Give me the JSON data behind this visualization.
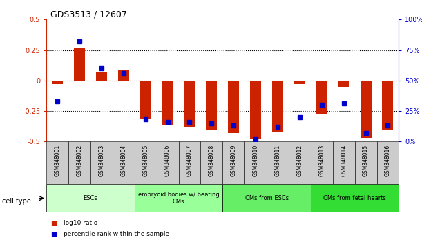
{
  "title": "GDS3513 / 12607",
  "samples": [
    "GSM348001",
    "GSM348002",
    "GSM348003",
    "GSM348004",
    "GSM348005",
    "GSM348006",
    "GSM348007",
    "GSM348008",
    "GSM348009",
    "GSM348010",
    "GSM348011",
    "GSM348012",
    "GSM348013",
    "GSM348014",
    "GSM348015",
    "GSM348016"
  ],
  "log10_ratio": [
    -0.03,
    0.27,
    0.07,
    0.09,
    -0.32,
    -0.37,
    -0.38,
    -0.4,
    -0.43,
    -0.48,
    -0.42,
    -0.03,
    -0.28,
    -0.05,
    -0.47,
    -0.4
  ],
  "percentile_rank": [
    33,
    82,
    60,
    56,
    18,
    16,
    16,
    15,
    13,
    2,
    12,
    20,
    30,
    31,
    7,
    13
  ],
  "ylim_left": [
    -0.5,
    0.5
  ],
  "ylim_right": [
    0,
    100
  ],
  "cell_type_groups": [
    {
      "label": "ESCs",
      "start": 0,
      "end": 3,
      "color": "#ccffcc"
    },
    {
      "label": "embryoid bodies w/ beating\nCMs",
      "start": 4,
      "end": 7,
      "color": "#99ff99"
    },
    {
      "label": "CMs from ESCs",
      "start": 8,
      "end": 11,
      "color": "#66ee66"
    },
    {
      "label": "CMs from fetal hearts",
      "start": 12,
      "end": 15,
      "color": "#33dd33"
    }
  ],
  "bar_color": "#cc2200",
  "dot_color": "#0000cc",
  "left_axis_color": "#cc2200",
  "right_axis_color": "#0000cc",
  "legend_items": [
    {
      "label": "log10 ratio",
      "color": "#cc2200"
    },
    {
      "label": "percentile rank within the sample",
      "color": "#0000cc"
    }
  ],
  "cell_type_label": "cell type"
}
